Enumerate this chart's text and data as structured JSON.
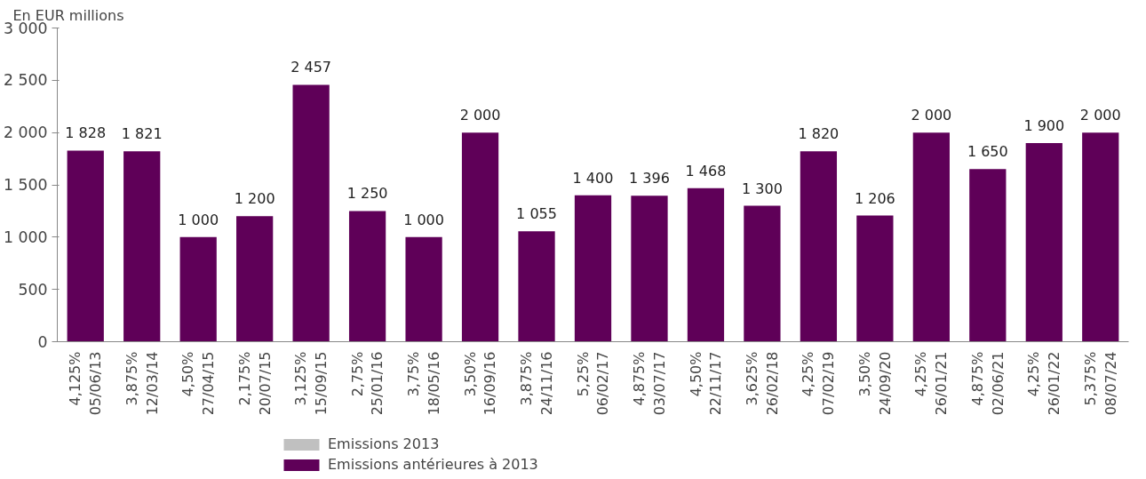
{
  "chart_data": {
    "type": "bar",
    "ylabel": "En EUR millions",
    "categories": [
      "4,125%\n05/06/13",
      "3,875%\n12/03/14",
      "4,50%\n27/04/15",
      "2,175%\n20/07/15",
      "3,125%\n15/09/15",
      "2,75%\n25/01/16",
      "3,75%\n18/05/16",
      "3,50%\n16/09/16",
      "3,875%\n24/11/16",
      "5,25%\n06/02/17",
      "4,875%\n03/07/17",
      "4,50%\n22/11/17",
      "3,625%\n26/02/18",
      "4,25%\n07/02/19",
      "3,50%\n24/09/20",
      "4,25%\n26/01/21",
      "4,875%\n02/06/21",
      "4,25%\n26/01/22",
      "5,375%\n08/07/24"
    ],
    "series": [
      {
        "name": "Emissions 2013",
        "color": "#c0c0c0",
        "values": [
          null,
          null,
          null,
          null,
          null,
          null,
          null,
          null,
          null,
          null,
          null,
          null,
          null,
          null,
          null,
          null,
          null,
          null,
          null
        ]
      },
      {
        "name": "Emissions antérieures à 2013",
        "color": "#5f0058",
        "values": [
          1828,
          1821,
          1000,
          1200,
          2457,
          1250,
          1000,
          2000,
          1055,
          1400,
          1396,
          1468,
          1300,
          1820,
          1206,
          2000,
          1650,
          1900,
          2000
        ],
        "value_labels": [
          "1 828",
          "1 821",
          "1 000",
          "1 200",
          "2 457",
          "1 250",
          "1 000",
          "2 000",
          "1 055",
          "1 400",
          "1 396",
          "1 468",
          "1 300",
          "1 820",
          "1 206",
          "2 000",
          "1 650",
          "1 900",
          "2 000"
        ]
      }
    ],
    "ylim": [
      0,
      3000
    ],
    "yticks": [
      {
        "value": 0,
        "label": "0"
      },
      {
        "value": 500,
        "label": "500"
      },
      {
        "value": 1000,
        "label": "1 000"
      },
      {
        "value": 1500,
        "label": "1 500"
      },
      {
        "value": 2000,
        "label": "2 000"
      },
      {
        "value": 2500,
        "label": "2 500"
      },
      {
        "value": 3000,
        "label": "3 000"
      }
    ],
    "grid": false,
    "legend": "bottom"
  }
}
